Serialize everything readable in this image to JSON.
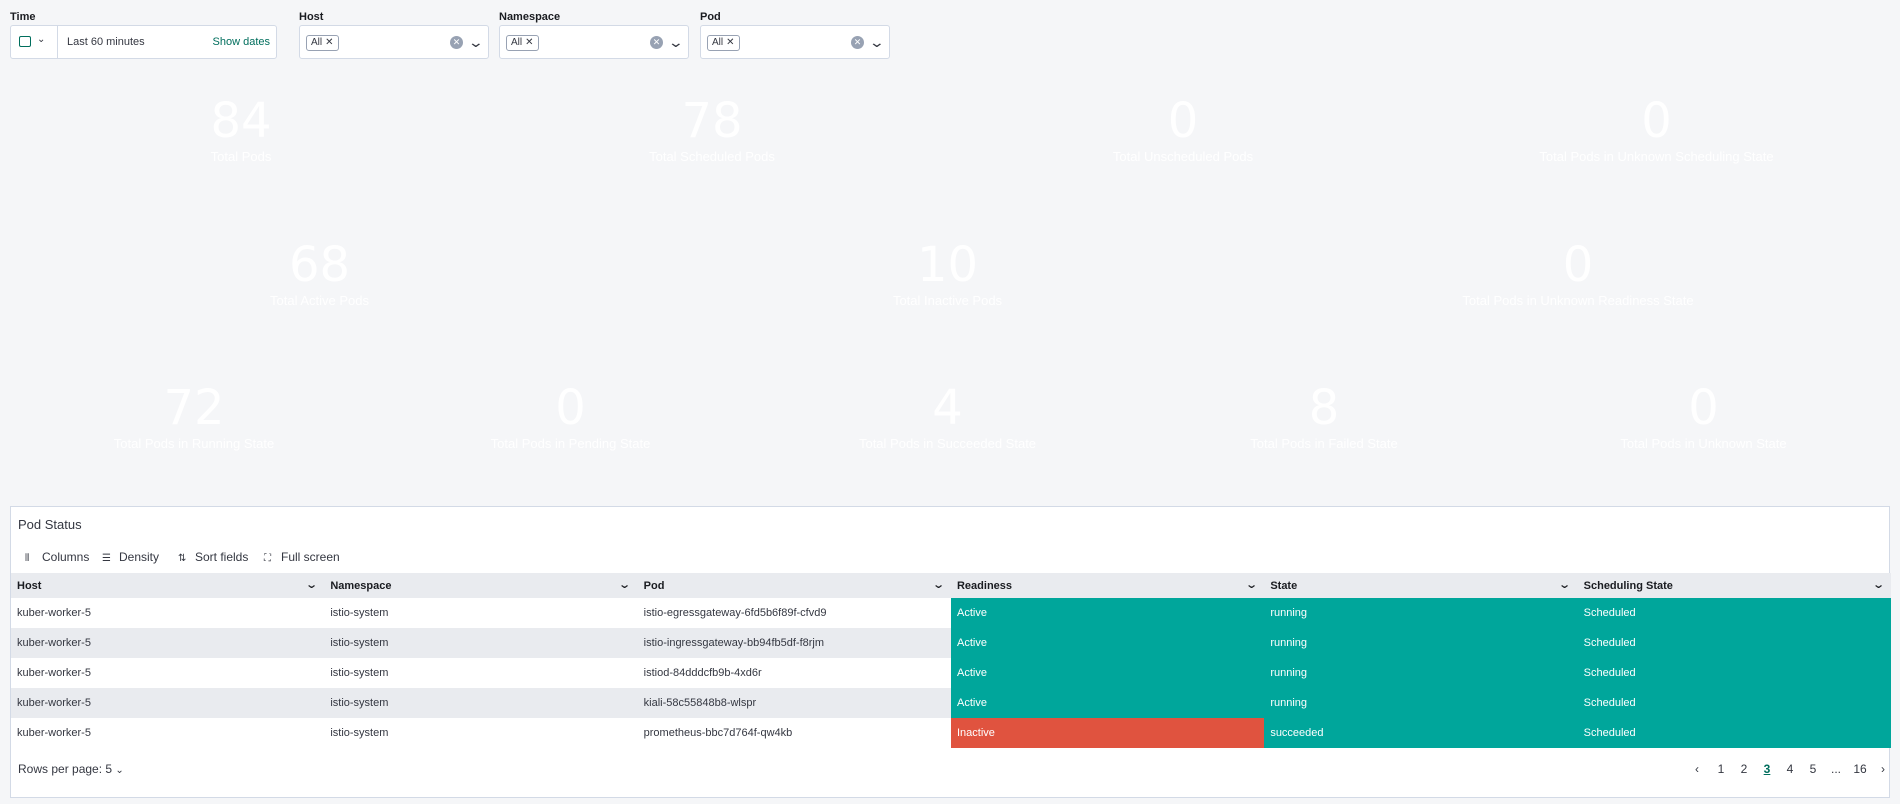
{
  "filters": {
    "time": {
      "label": "Time",
      "value": "Last 60 minutes",
      "show_dates": "Show dates"
    },
    "host": {
      "label": "Host",
      "chip": "All"
    },
    "namespace": {
      "label": "Namespace",
      "chip": "All"
    },
    "pod": {
      "label": "Pod",
      "chip": "All"
    }
  },
  "row1": [
    {
      "value": "84",
      "label": "Total Pods",
      "color": "#00a69b"
    },
    {
      "value": "78",
      "label": "Total Scheduled Pods",
      "color": "#00a69b"
    },
    {
      "value": "0",
      "label": "Total Unscheduled Pods",
      "color": "#00a69b"
    },
    {
      "value": "0",
      "label": "Total Pods in Unknown Scheduling State",
      "color": "#00a69b"
    }
  ],
  "row2": [
    {
      "value": "68",
      "label": "Total Active Pods",
      "color": "#00a69b"
    },
    {
      "value": "10",
      "label": "Total Inactive Pods",
      "color": "#e0533f"
    },
    {
      "value": "0",
      "label": "Total Pods in Unknown Readiness State",
      "color": "#00a69b"
    }
  ],
  "row3": [
    {
      "value": "72",
      "label": "Total Pods in Running State",
      "color": "#00a69b"
    },
    {
      "value": "0",
      "label": "Total Pods in Pending State",
      "color": "#00a69b"
    },
    {
      "value": "4",
      "label": "Total Pods in Succeeded State",
      "color": "#00a69b"
    },
    {
      "value": "8",
      "label": "Total Pods in Failed State",
      "color": "#e0533f"
    },
    {
      "value": "0",
      "label": "Total Pods in Unknown State",
      "color": "#00a69b"
    }
  ],
  "table": {
    "title": "Pod Status",
    "toolbar": {
      "columns": "Columns",
      "density": "Density",
      "sort": "Sort fields",
      "fullscreen": "Full screen"
    },
    "headers": [
      "Host",
      "Namespace",
      "Pod",
      "Readiness",
      "State",
      "Scheduling State"
    ],
    "rows": [
      [
        "kuber-worker-5",
        "istio-system",
        "istio-egressgateway-6fd5b6f89f-cfvd9",
        "Active",
        "running",
        "Scheduled"
      ],
      [
        "kuber-worker-5",
        "istio-system",
        "istio-ingressgateway-bb94fb5df-f8rjm",
        "Active",
        "running",
        "Scheduled"
      ],
      [
        "kuber-worker-5",
        "istio-system",
        "istiod-84dddcfb9b-4xd6r",
        "Active",
        "running",
        "Scheduled"
      ],
      [
        "kuber-worker-5",
        "istio-system",
        "kiali-58c55848b8-wlspr",
        "Active",
        "running",
        "Scheduled"
      ],
      [
        "kuber-worker-5",
        "istio-system",
        "prometheus-bbc7d764f-qw4kb",
        "Inactive",
        "succeeded",
        "Scheduled"
      ]
    ],
    "cell_colors": [
      [
        "",
        "",
        "",
        "#00a69b",
        "#00a69b",
        "#00a69b"
      ],
      [
        "",
        "",
        "",
        "#00a69b",
        "#00a69b",
        "#00a69b"
      ],
      [
        "",
        "",
        "",
        "#00a69b",
        "#00a69b",
        "#00a69b"
      ],
      [
        "",
        "",
        "",
        "#00a69b",
        "#00a69b",
        "#00a69b"
      ],
      [
        "",
        "",
        "",
        "#e0533f",
        "#00a69b",
        "#00a69b"
      ]
    ],
    "rows_per_page": "Rows per page: 5",
    "pages": [
      "1",
      "2",
      "3",
      "4",
      "5",
      "...",
      "16"
    ],
    "current_page": "3"
  }
}
